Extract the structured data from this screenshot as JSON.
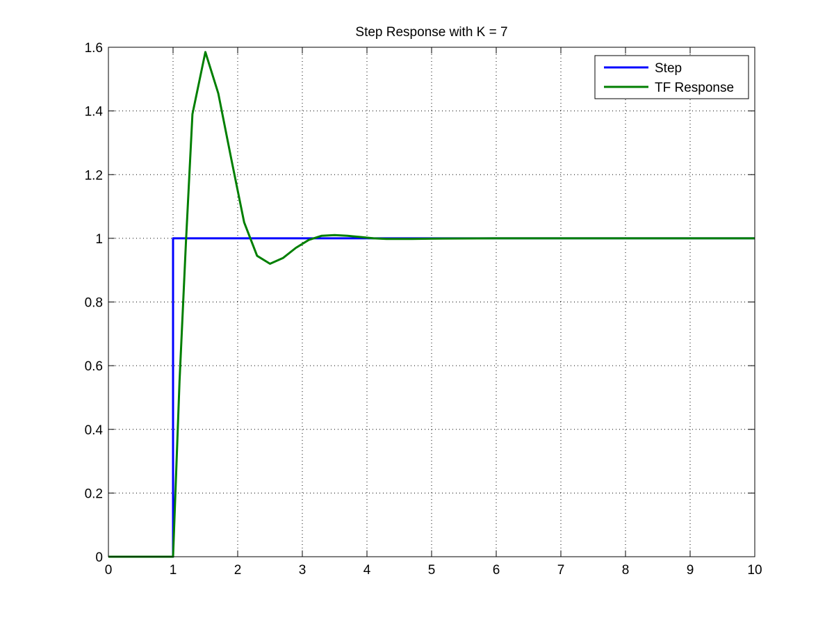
{
  "chart_data": {
    "type": "line",
    "title": "Step Response with K = 7",
    "xlabel": "",
    "ylabel": "",
    "xlim": [
      0,
      10
    ],
    "ylim": [
      0,
      1.6
    ],
    "xticks": [
      0,
      1,
      2,
      3,
      4,
      5,
      6,
      7,
      8,
      9,
      10
    ],
    "yticks": [
      0,
      0.2,
      0.4,
      0.6,
      0.8,
      1,
      1.2,
      1.4,
      1.6
    ],
    "xtick_labels": [
      "0",
      "1",
      "2",
      "3",
      "4",
      "5",
      "6",
      "7",
      "8",
      "9",
      "10"
    ],
    "ytick_labels": [
      "0",
      "0.2",
      "0.4",
      "0.6",
      "0.8",
      "1",
      "1.2",
      "1.4",
      "1.6"
    ],
    "grid": true,
    "legend_position": "top-right",
    "series": [
      {
        "name": "Step",
        "color": "#0000ff",
        "points": [
          [
            0,
            0
          ],
          [
            1,
            0
          ],
          [
            1,
            0.5
          ],
          [
            1,
            1
          ],
          [
            10,
            1
          ]
        ]
      },
      {
        "name": "TF Response",
        "color": "#007f00",
        "points": [
          [
            0,
            0
          ],
          [
            1,
            0
          ],
          [
            1.1,
            0.55
          ],
          [
            1.2,
            0.99
          ],
          [
            1.3,
            1.39
          ],
          [
            1.5,
            1.585
          ],
          [
            1.7,
            1.455
          ],
          [
            1.9,
            1.25
          ],
          [
            2.1,
            1.05
          ],
          [
            2.3,
            0.945
          ],
          [
            2.5,
            0.92
          ],
          [
            2.7,
            0.938
          ],
          [
            2.9,
            0.97
          ],
          [
            3.1,
            0.995
          ],
          [
            3.3,
            1.008
          ],
          [
            3.5,
            1.01
          ],
          [
            3.7,
            1.008
          ],
          [
            3.9,
            1.004
          ],
          [
            4.1,
            1.0
          ],
          [
            4.3,
            0.998
          ],
          [
            4.5,
            0.998
          ],
          [
            4.7,
            0.998
          ],
          [
            5.0,
            0.999
          ],
          [
            6,
            1.0
          ],
          [
            10,
            1.0
          ]
        ]
      }
    ]
  }
}
